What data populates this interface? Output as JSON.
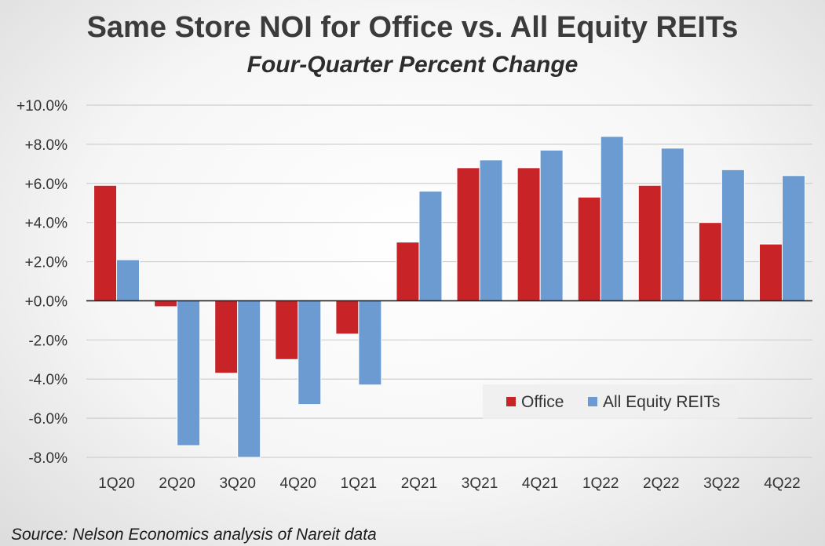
{
  "chart_data": {
    "type": "bar",
    "title": "Same Store NOI for Office vs. All Equity REITs",
    "subtitle": "Four-Quarter Percent Change",
    "categories": [
      "1Q20",
      "2Q20",
      "3Q20",
      "4Q20",
      "1Q21",
      "2Q21",
      "3Q21",
      "4Q21",
      "1Q22",
      "2Q22",
      "3Q22",
      "4Q22"
    ],
    "series": [
      {
        "name": "Office",
        "color": "#c82428",
        "values": [
          5.9,
          -0.3,
          -3.7,
          -3.0,
          -1.7,
          3.0,
          6.8,
          6.8,
          5.3,
          5.9,
          4.0,
          2.9
        ]
      },
      {
        "name": "All Equity REITs",
        "color": "#6b9bd1",
        "values": [
          2.1,
          -7.4,
          -8.0,
          -5.3,
          -4.3,
          5.6,
          7.2,
          7.7,
          8.4,
          7.8,
          6.7,
          6.4
        ]
      }
    ],
    "ylim": [
      -8.0,
      10.0
    ],
    "yticks": [
      10.0,
      8.0,
      6.0,
      4.0,
      2.0,
      0.0,
      -2.0,
      -4.0,
      -6.0,
      -8.0
    ],
    "ytick_labels": [
      "+10.0%",
      "+8.0%",
      "+6.0%",
      "+4.0%",
      "+2.0%",
      "+0.0%",
      "-2.0%",
      "-4.0%",
      "-6.0%",
      "-8.0%"
    ],
    "grid": true,
    "legend_position": "bottom-right"
  },
  "source_note": "Source: Nelson Economics analysis of Nareit data"
}
